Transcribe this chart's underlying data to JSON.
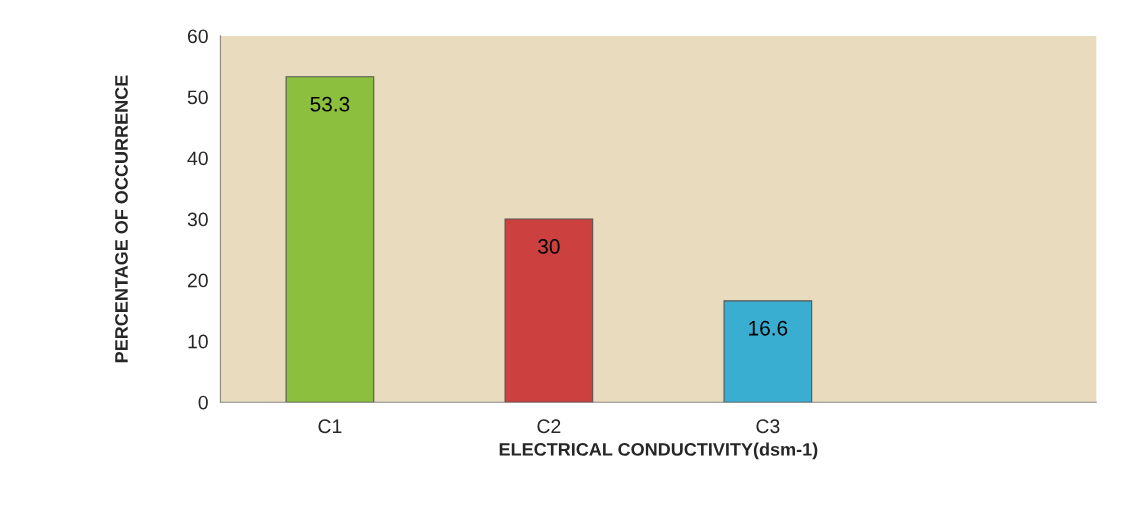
{
  "chart_data": {
    "type": "bar",
    "xlabel": "ELECTRICAL CONDUCTIVITY(dsm-1)",
    "ylabel": "PERCENTAGE OF OCCURRENCE",
    "categories": [
      "C1",
      "C2",
      "C3",
      null
    ],
    "values": [
      53.3,
      30,
      16.6,
      null
    ],
    "colors": [
      "#8dbf3e",
      "#cc4040",
      "#3aaed0",
      null
    ],
    "ylim": [
      0,
      60
    ],
    "yticks": [
      0,
      10,
      20,
      30,
      40,
      50,
      60
    ],
    "grid": false,
    "data_labels": true
  }
}
